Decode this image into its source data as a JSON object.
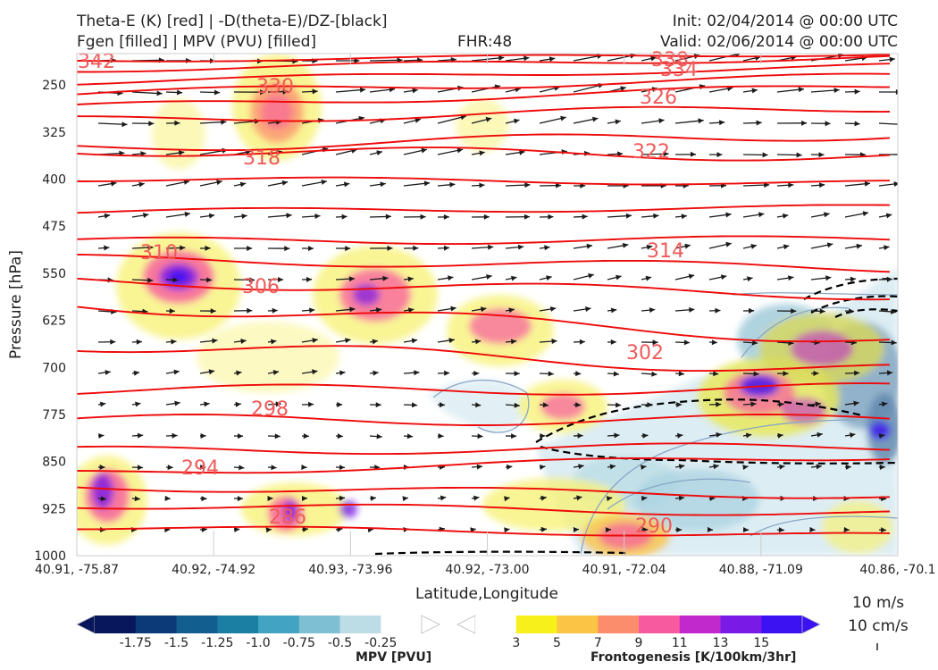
{
  "header": {
    "title_line1": "Theta-E (K) [red] | -D(theta-E)/DZ-[black]",
    "title_line2": "Fgen [filled] | MPV (PVU) [filled]",
    "fhr": "FHR:48",
    "init": "Init: 02/04/2014 @ 00:00 UTC",
    "valid": "Valid: 02/06/2014 @ 00:00 UTC"
  },
  "chart_data": {
    "type": "cross-section",
    "xlabel": "Latitude,Longitude",
    "ylabel": "Pressure [hPa]",
    "x_ticks": [
      "40.91, -75.87",
      "40.92, -74.92",
      "40.93, -73.96",
      "40.92, -73.00",
      "40.91, -72.04",
      "40.88, -71.09",
      "40.86, -70.1"
    ],
    "y_ticks": [
      250,
      325,
      400,
      475,
      550,
      625,
      700,
      775,
      850,
      925,
      1000
    ],
    "ylim": [
      1000,
      200
    ],
    "theta_e_contours": [
      {
        "label": "342",
        "pressure": 205
      },
      {
        "label": "338",
        "pressure": 208
      },
      {
        "label": "334",
        "pressure": 215
      },
      {
        "label": "330",
        "pressure": 250
      },
      {
        "label": "326",
        "pressure": 262
      },
      {
        "label": "322",
        "pressure": 355
      },
      {
        "label": "318",
        "pressure": 360
      },
      {
        "label": "314",
        "pressure": 520
      },
      {
        "label": "310",
        "pressure": 520
      },
      {
        "label": "306",
        "pressure": 565
      },
      {
        "label": "302",
        "pressure": 680
      },
      {
        "label": "298",
        "pressure": 760
      },
      {
        "label": "294",
        "pressure": 870
      },
      {
        "label": "290",
        "pressure": 965
      },
      {
        "label": "286",
        "pressure": 955
      }
    ],
    "colorbar_mpv": {
      "title": "MPV [PVU]",
      "labels": [
        "-1.75",
        "-1.5",
        "-1.25",
        "-1.0",
        "-0.75",
        "-0.5",
        "-0.25"
      ],
      "colors": [
        "#08175c",
        "#0c3a78",
        "#125e8f",
        "#1b7fa4",
        "#43a3c2",
        "#7fbfd4",
        "#bcdde6"
      ]
    },
    "colorbar_fgen": {
      "title": "Frontogenesis [K/100km/3hr]",
      "labels": [
        "3",
        "5",
        "7",
        "9",
        "11",
        "13",
        "15"
      ],
      "colors": [
        "#f8f01a",
        "#fbc444",
        "#fb8d6d",
        "#f85a9f",
        "#c229cc",
        "#7a1ae6",
        "#3c12f2"
      ]
    },
    "wind_reference": {
      "horizontal": "10 m/s",
      "vertical": "10 cm/s"
    }
  }
}
